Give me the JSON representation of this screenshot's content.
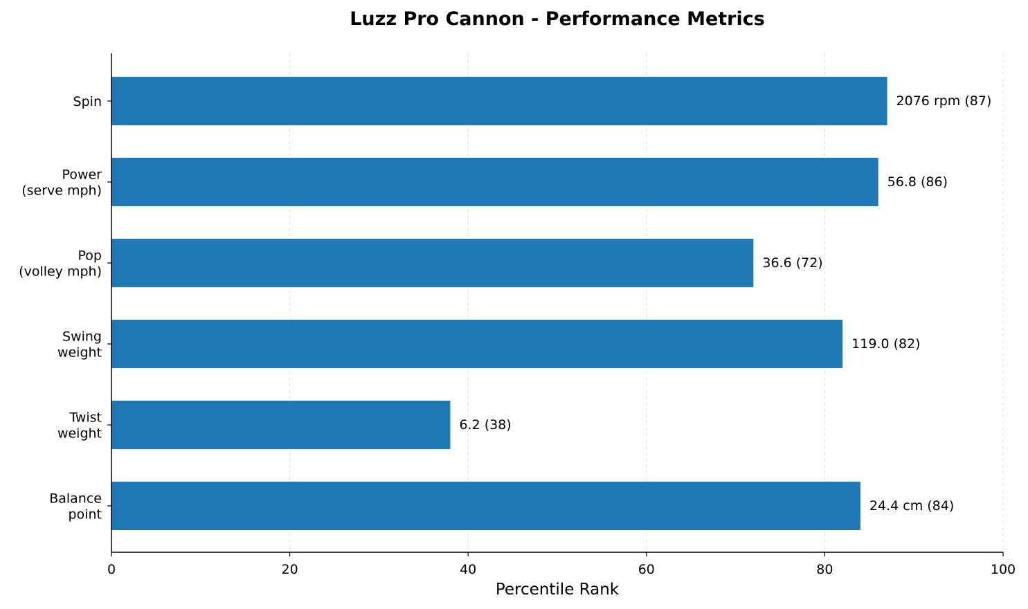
{
  "chart_data": {
    "type": "bar",
    "orientation": "horizontal",
    "title": "Luzz Pro Cannon - Performance Metrics",
    "xlabel": "Percentile Rank",
    "ylabel": "",
    "xlim": [
      0,
      100
    ],
    "xticks": [
      0,
      20,
      40,
      60,
      80,
      100
    ],
    "grid": "x-dashed",
    "color": "#1f77b4",
    "categories": [
      [
        "Spin"
      ],
      [
        "Power",
        "(serve mph)"
      ],
      [
        "Pop",
        "(volley mph)"
      ],
      [
        "Swing",
        "weight"
      ],
      [
        "Twist",
        "weight"
      ],
      [
        "Balance",
        "point"
      ]
    ],
    "values": [
      87,
      86,
      72,
      82,
      38,
      84
    ],
    "data_labels": [
      "2076 rpm (87)",
      "56.8 (86)",
      "36.6 (72)",
      "119.0 (82)",
      "6.2 (38)",
      "24.4 cm (84)"
    ]
  }
}
